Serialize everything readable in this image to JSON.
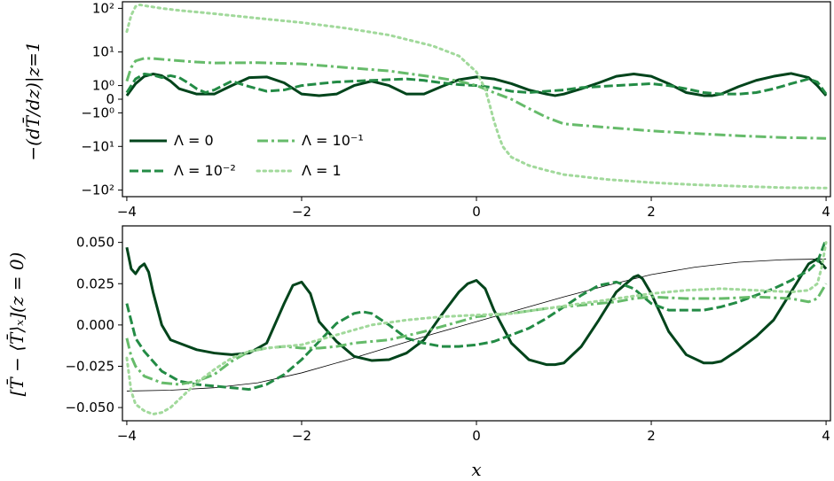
{
  "chart_data": [
    {
      "type": "line",
      "panel": "top",
      "ylabel": "−(dT̄/dz)|z=1",
      "yscale": "symlog",
      "xlim": [
        -4.05,
        4.05
      ],
      "x_ticks": [
        "−4",
        "−2",
        "0",
        "2",
        "4"
      ],
      "x_tick_values": [
        -4,
        -2,
        0,
        2,
        4
      ],
      "y_ticks": [
        "10²",
        "10¹",
        "10⁰",
        "0",
        "−10⁰",
        "−10¹",
        "−10²"
      ],
      "y_tick_values": [
        100,
        10,
        1,
        0,
        -1,
        -10,
        -100
      ],
      "legend": {
        "placement": "lower-left",
        "entries": [
          "Λ = 0",
          "Λ = 10⁻²",
          "Λ = 10⁻¹",
          "Λ = 1"
        ]
      },
      "series": [
        {
          "name": "Λ = 0",
          "color": "#00441b",
          "dash": "solid",
          "x": [
            -4.0,
            -3.9,
            -3.8,
            -3.7,
            -3.6,
            -3.5,
            -3.4,
            -3.2,
            -3.0,
            -2.8,
            -2.6,
            -2.4,
            -2.2,
            -2.0,
            -1.8,
            -1.6,
            -1.4,
            -1.2,
            -1.0,
            -0.8,
            -0.6,
            -0.4,
            -0.2,
            0.0,
            0.2,
            0.4,
            0.6,
            0.8,
            0.9,
            1.0,
            1.2,
            1.4,
            1.6,
            1.8,
            2.0,
            2.2,
            2.4,
            2.6,
            2.7,
            2.8,
            3.0,
            3.2,
            3.4,
            3.6,
            3.8,
            3.9,
            4.0
          ],
          "y": [
            0.2,
            1.2,
            2.2,
            2.6,
            2.3,
            1.5,
            0.7,
            0.3,
            0.3,
            1.0,
            2.0,
            2.1,
            1.3,
            0.3,
            0.2,
            0.3,
            1.0,
            1.5,
            1.0,
            0.3,
            0.3,
            0.9,
            1.7,
            2.1,
            1.8,
            1.2,
            0.6,
            0.3,
            0.2,
            0.3,
            0.7,
            1.3,
            2.2,
            2.6,
            2.2,
            1.2,
            0.4,
            0.2,
            0.2,
            0.3,
            0.9,
            1.6,
            2.2,
            2.7,
            2.0,
            1.0,
            0.2
          ]
        },
        {
          "name": "Λ = 10⁻²",
          "color": "#238b45",
          "dash": "dashed",
          "x": [
            -4.0,
            -3.9,
            -3.8,
            -3.7,
            -3.6,
            -3.5,
            -3.4,
            -3.3,
            -3.2,
            -3.1,
            -3.0,
            -2.8,
            -2.6,
            -2.4,
            -2.2,
            -2.0,
            -1.8,
            -1.6,
            -1.4,
            -1.2,
            -1.0,
            -0.8,
            -0.6,
            -0.4,
            -0.2,
            0.0,
            0.2,
            0.4,
            0.6,
            0.8,
            1.0,
            1.2,
            1.4,
            1.6,
            1.8,
            2.0,
            2.2,
            2.4,
            2.6,
            2.8,
            3.0,
            3.2,
            3.4,
            3.6,
            3.8,
            3.9,
            4.0
          ],
          "y": [
            0.4,
            1.8,
            2.6,
            2.4,
            2.0,
            2.3,
            2.0,
            1.3,
            0.7,
            0.4,
            0.6,
            1.5,
            0.9,
            0.5,
            0.6,
            1.0,
            1.2,
            1.4,
            1.5,
            1.6,
            1.7,
            1.8,
            1.6,
            1.3,
            1.1,
            1.0,
            0.8,
            0.5,
            0.4,
            0.5,
            0.6,
            0.8,
            0.9,
            1.0,
            1.1,
            1.2,
            1.0,
            0.7,
            0.4,
            0.3,
            0.3,
            0.4,
            0.7,
            1.2,
            1.8,
            1.4,
            0.3
          ]
        },
        {
          "name": "Λ = 10⁻¹",
          "color": "#66bb6a",
          "dash": "dashdot",
          "x": [
            -4.0,
            -3.95,
            -3.9,
            -3.8,
            -3.7,
            -3.5,
            -3.2,
            -3.0,
            -2.5,
            -2.0,
            -1.5,
            -1.0,
            -0.5,
            -0.2,
            0.0,
            0.2,
            0.4,
            0.6,
            0.8,
            1.0,
            1.5,
            2.0,
            2.5,
            3.0,
            3.5,
            4.0
          ],
          "y": [
            1.5,
            4.0,
            6.0,
            7.0,
            6.9,
            6.3,
            5.6,
            5.3,
            5.4,
            5.0,
            4.0,
            3.2,
            2.1,
            1.5,
            1.0,
            0.4,
            0.0,
            -0.6,
            -1.5,
            -2.5,
            -3.2,
            -4.0,
            -4.7,
            -5.4,
            -6.0,
            -6.3
          ]
        },
        {
          "name": "Λ = 1",
          "color": "#a1d99b",
          "dash": "dotted",
          "x": [
            -4.0,
            -3.95,
            -3.9,
            -3.85,
            -3.8,
            -3.6,
            -3.4,
            -3.0,
            -2.5,
            -2.0,
            -1.5,
            -1.0,
            -0.5,
            -0.2,
            0.0,
            0.1,
            0.15,
            0.2,
            0.25,
            0.3,
            0.4,
            0.6,
            0.8,
            1.0,
            1.5,
            2.0,
            2.5,
            3.0,
            3.5,
            4.0
          ],
          "y": [
            30,
            70,
            110,
            120,
            115,
            100,
            90,
            76,
            60,
            48,
            36,
            25,
            14,
            8,
            3,
            0.7,
            -0.3,
            -2.0,
            -5.0,
            -10,
            -18,
            -28,
            -36,
            -45,
            -58,
            -68,
            -76,
            -82,
            -88,
            -90
          ]
        }
      ]
    },
    {
      "type": "line",
      "panel": "bottom",
      "xlabel": "x",
      "ylabel": "[T̄ − ⟨T̄⟩ₓ](z = 0)",
      "xlim": [
        -4.05,
        4.05
      ],
      "ylim": [
        -0.058,
        0.06
      ],
      "x_ticks": [
        "−4",
        "−2",
        "0",
        "2",
        "4"
      ],
      "x_tick_values": [
        -4,
        -2,
        0,
        2,
        4
      ],
      "y_ticks": [
        "0.050",
        "0.025",
        "0.000",
        "−0.025",
        "−0.050"
      ],
      "y_tick_values": [
        0.05,
        0.025,
        0.0,
        -0.025,
        -0.05
      ],
      "series": [
        {
          "color": "#000000",
          "dash": "solid",
          "thin": true,
          "x": [
            -4.0,
            -3.5,
            -3.0,
            -2.5,
            -2.0,
            -1.5,
            -1.0,
            -0.5,
            0.0,
            0.5,
            1.0,
            1.5,
            2.0,
            2.5,
            3.0,
            3.5,
            4.0
          ],
          "y": [
            -0.04,
            -0.0395,
            -0.038,
            -0.035,
            -0.029,
            -0.0215,
            -0.0135,
            -0.0055,
            0.002,
            0.0095,
            0.017,
            0.024,
            0.0305,
            0.035,
            0.038,
            0.0395,
            0.04
          ]
        },
        {
          "color": "#00441b",
          "dash": "solid",
          "x": [
            -4.0,
            -3.95,
            -3.9,
            -3.85,
            -3.8,
            -3.75,
            -3.7,
            -3.6,
            -3.5,
            -3.4,
            -3.2,
            -3.0,
            -2.8,
            -2.6,
            -2.4,
            -2.2,
            -2.1,
            -2.0,
            -1.9,
            -1.8,
            -1.6,
            -1.4,
            -1.2,
            -1.0,
            -0.8,
            -0.6,
            -0.4,
            -0.2,
            -0.1,
            0.0,
            0.1,
            0.2,
            0.4,
            0.6,
            0.8,
            0.9,
            1.0,
            1.2,
            1.4,
            1.6,
            1.8,
            1.85,
            1.9,
            2.0,
            2.2,
            2.4,
            2.6,
            2.7,
            2.8,
            3.0,
            3.2,
            3.4,
            3.6,
            3.8,
            3.9,
            4.0
          ],
          "y": [
            0.047,
            0.034,
            0.031,
            0.035,
            0.037,
            0.032,
            0.02,
            0.0,
            -0.009,
            -0.011,
            -0.015,
            -0.017,
            -0.018,
            -0.017,
            -0.011,
            0.013,
            0.024,
            0.026,
            0.019,
            0.002,
            -0.01,
            -0.019,
            -0.0215,
            -0.021,
            -0.017,
            -0.009,
            0.006,
            0.02,
            0.025,
            0.027,
            0.022,
            0.009,
            -0.011,
            -0.021,
            -0.024,
            -0.024,
            -0.023,
            -0.013,
            0.003,
            0.02,
            0.029,
            0.03,
            0.028,
            0.019,
            -0.004,
            -0.018,
            -0.023,
            -0.023,
            -0.022,
            -0.015,
            -0.007,
            0.003,
            0.02,
            0.037,
            0.04,
            0.034
          ]
        },
        {
          "color": "#238b45",
          "dash": "dashed",
          "x": [
            -4.0,
            -3.9,
            -3.8,
            -3.7,
            -3.6,
            -3.4,
            -3.2,
            -3.0,
            -2.8,
            -2.6,
            -2.4,
            -2.2,
            -2.0,
            -1.8,
            -1.6,
            -1.4,
            -1.3,
            -1.2,
            -1.0,
            -0.8,
            -0.6,
            -0.4,
            -0.2,
            0.0,
            0.2,
            0.4,
            0.6,
            0.8,
            1.0,
            1.2,
            1.4,
            1.6,
            1.8,
            2.0,
            2.2,
            2.4,
            2.6,
            2.8,
            3.0,
            3.2,
            3.4,
            3.6,
            3.8,
            3.9,
            4.0
          ],
          "y": [
            0.013,
            -0.008,
            -0.016,
            -0.022,
            -0.028,
            -0.034,
            -0.036,
            -0.037,
            -0.038,
            -0.039,
            -0.036,
            -0.03,
            -0.021,
            -0.01,
            0.001,
            0.007,
            0.008,
            0.007,
            0.0,
            -0.008,
            -0.011,
            -0.013,
            -0.013,
            -0.012,
            -0.01,
            -0.006,
            -0.002,
            0.004,
            0.011,
            0.018,
            0.024,
            0.026,
            0.022,
            0.013,
            0.009,
            0.009,
            0.009,
            0.011,
            0.014,
            0.018,
            0.022,
            0.027,
            0.033,
            0.038,
            0.052
          ]
        },
        {
          "color": "#66bb6a",
          "dash": "dashdot",
          "x": [
            -4.0,
            -3.95,
            -3.9,
            -3.8,
            -3.6,
            -3.4,
            -3.2,
            -3.0,
            -2.8,
            -2.6,
            -2.4,
            -2.2,
            -2.0,
            -1.8,
            -1.6,
            -1.4,
            -1.2,
            -1.0,
            -0.6,
            -0.2,
            0.0,
            0.4,
            0.8,
            1.2,
            1.6,
            1.8,
            2.0,
            2.4,
            2.8,
            3.2,
            3.6,
            3.8,
            3.9,
            4.0
          ],
          "y": [
            -0.008,
            -0.019,
            -0.025,
            -0.031,
            -0.035,
            -0.036,
            -0.034,
            -0.03,
            -0.022,
            -0.016,
            -0.014,
            -0.013,
            -0.014,
            -0.014,
            -0.013,
            -0.011,
            -0.01,
            -0.009,
            -0.004,
            0.002,
            0.005,
            0.007,
            0.01,
            0.012,
            0.014,
            0.016,
            0.017,
            0.016,
            0.016,
            0.017,
            0.016,
            0.014,
            0.016,
            0.025
          ]
        },
        {
          "color": "#a1d99b",
          "dash": "dotted",
          "x": [
            -4.0,
            -3.95,
            -3.9,
            -3.8,
            -3.7,
            -3.6,
            -3.5,
            -3.4,
            -3.2,
            -3.0,
            -2.8,
            -2.6,
            -2.4,
            -2.2,
            -2.0,
            -1.6,
            -1.2,
            -0.8,
            -0.4,
            0.0,
            0.4,
            0.8,
            1.2,
            1.6,
            2.0,
            2.4,
            2.8,
            3.2,
            3.6,
            3.8,
            3.9,
            3.95,
            4.0
          ],
          "y": [
            -0.02,
            -0.04,
            -0.048,
            -0.052,
            -0.054,
            -0.053,
            -0.05,
            -0.045,
            -0.035,
            -0.027,
            -0.02,
            -0.016,
            -0.014,
            -0.013,
            -0.012,
            -0.006,
            0.0,
            0.003,
            0.005,
            0.006,
            0.007,
            0.01,
            0.013,
            0.016,
            0.019,
            0.021,
            0.022,
            0.021,
            0.02,
            0.021,
            0.025,
            0.035,
            0.05
          ]
        }
      ]
    }
  ]
}
